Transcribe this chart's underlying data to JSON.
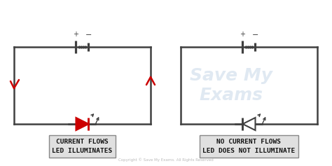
{
  "bg_color": "#ffffff",
  "circuit_color": "#404040",
  "red_color": "#cc0000",
  "label1": "CURRENT FLOWS\nLED ILLUMINATES",
  "label2": "NO CURRENT FLOWS\nLED DOES NOT ILLUMINATE",
  "copyright": "Copyright © Save My Exams. All Rights Reserved",
  "watermark_line1": "Save My",
  "watermark_line2": "Exams",
  "fig_width": 4.74,
  "fig_height": 2.37,
  "lw": 1.8
}
